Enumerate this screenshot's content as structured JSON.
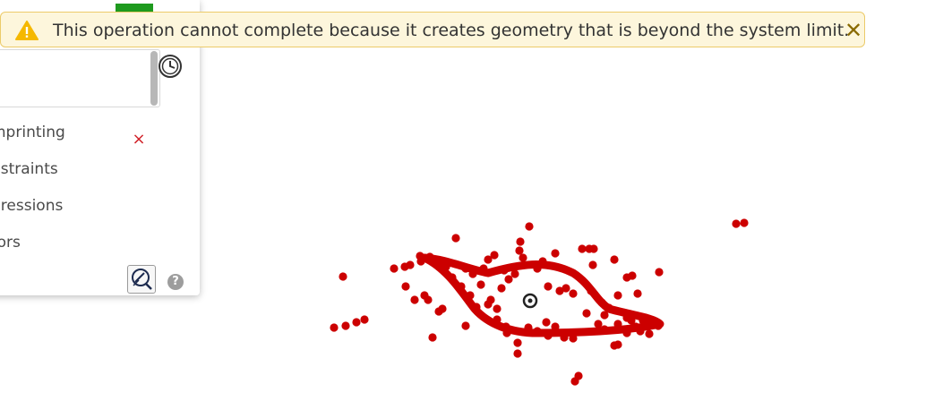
{
  "banner": {
    "icon": "warning-triangle-icon",
    "message": "This operation cannot complete because it creates geometry that is beyond the system limit.",
    "close_icon": "close-icon",
    "color": "#fdf6dc",
    "border_color": "#eccb6a"
  },
  "panel": {
    "clear_symbol": "×",
    "history_icon": "clock-icon",
    "list": [
      {
        "label": "mprinting"
      },
      {
        "label": "nstraints"
      },
      {
        "label": "pressions"
      },
      {
        "label": "rors"
      }
    ],
    "inspect_icon": "magnifier-pen-icon",
    "help_symbol": "?"
  },
  "canvas": {
    "point_color": "#cc0000",
    "origin_icon": "origin-marker-icon"
  }
}
